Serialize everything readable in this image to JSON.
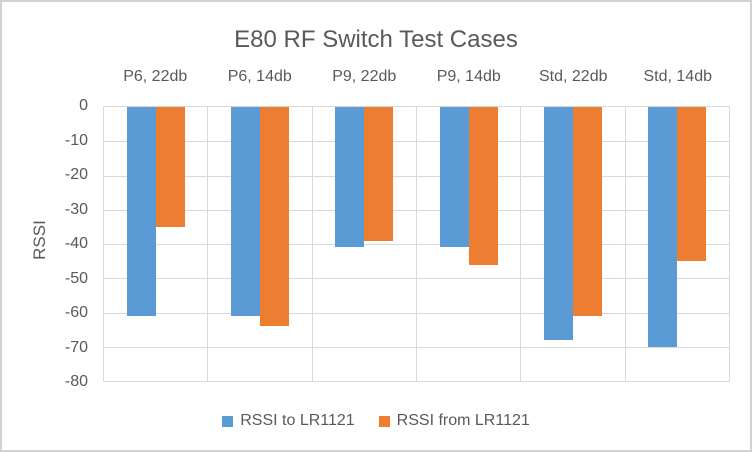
{
  "title": "E80 RF Switch Test Cases",
  "colors": {
    "series_blue": "#5B9BD5",
    "series_orange": "#ED7D31",
    "text": "#595959",
    "gridline": "#D9D9D9",
    "chart_border": "#D2D2D2",
    "background": "#FFFFFF"
  },
  "legend": {
    "position": "bottom",
    "items": [
      {
        "label": "RSSI to LR1121",
        "color": "#5B9BD5"
      },
      {
        "label": "RSSI from LR1121",
        "color": "#ED7D31"
      }
    ]
  },
  "chart_data": {
    "type": "bar",
    "title": "E80 RF Switch Test Cases",
    "categories": [
      "P6, 22db",
      "P6, 14db",
      "P9, 22db",
      "P9, 14db",
      "Std, 22db",
      "Std, 14db"
    ],
    "series": [
      {
        "name": "RSSI to LR1121",
        "color": "#5B9BD5",
        "values": [
          -61,
          -61,
          -41,
          -41,
          -68,
          -70
        ]
      },
      {
        "name": "RSSI from LR1121",
        "color": "#ED7D31",
        "values": [
          -35,
          -64,
          -39,
          -46,
          -61,
          -45
        ]
      }
    ],
    "xlabel": "",
    "ylabel": "RSSI",
    "ylim": [
      -80,
      0
    ],
    "yticks": [
      0,
      -10,
      -20,
      -30,
      -40,
      -50,
      -60,
      -70,
      -80
    ],
    "grid": true,
    "bar_orientation": "vertical-from-zero-downward",
    "legend_position": "bottom"
  }
}
